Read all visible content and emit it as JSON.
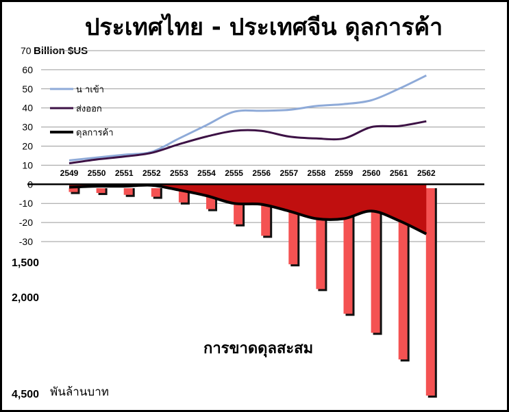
{
  "chart_data": {
    "type": "line",
    "title": "ประเทศไทย - ประเทศจีน ดุลการค้า",
    "ylabel": "Billion $US",
    "ylim": [
      -30,
      70
    ],
    "yticks": [
      70,
      60,
      50,
      40,
      30,
      20,
      10,
      0,
      -10,
      -20,
      -30
    ],
    "grid": true,
    "legend_position": "top-left",
    "categories": [
      "2549",
      "2550",
      "2551",
      "2552",
      "2553",
      "2554",
      "2555",
      "2556",
      "2557",
      "2558",
      "2559",
      "2560",
      "2561",
      "2562"
    ],
    "series": [
      {
        "name": "น าเข้า",
        "kind": "line",
        "color": "#8eaad8",
        "values": [
          12.5,
          14,
          15.5,
          17,
          24,
          31,
          38,
          38.5,
          39,
          41,
          42,
          44,
          50,
          57
        ]
      },
      {
        "name": "ส่งออก",
        "kind": "line",
        "color": "#3d1245",
        "values": [
          11,
          13,
          14.5,
          16.5,
          21,
          25,
          28,
          28,
          25,
          24,
          24,
          30,
          30.5,
          33
        ]
      },
      {
        "name": "ดุลการค้า",
        "kind": "area",
        "color": "#000000",
        "fill": "#c00f0f",
        "values": [
          -1.5,
          -1,
          -1,
          -0.5,
          -3,
          -6,
          -10,
          -10.5,
          -14,
          -18,
          -18,
          -14,
          -19,
          -26
        ]
      }
    ],
    "cumulative": {
      "label": "การขาดดุลสะสม",
      "unit": "พันล้านบาท",
      "tick_labels": [
        "1,500",
        "2,000",
        "4,500"
      ],
      "tick_values": [
        1500,
        2000,
        4500
      ],
      "color": "#f45252",
      "values": [
        20,
        25,
        35,
        45,
        75,
        110,
        190,
        250,
        400,
        530,
        660,
        760,
        900,
        1090
      ]
    }
  }
}
